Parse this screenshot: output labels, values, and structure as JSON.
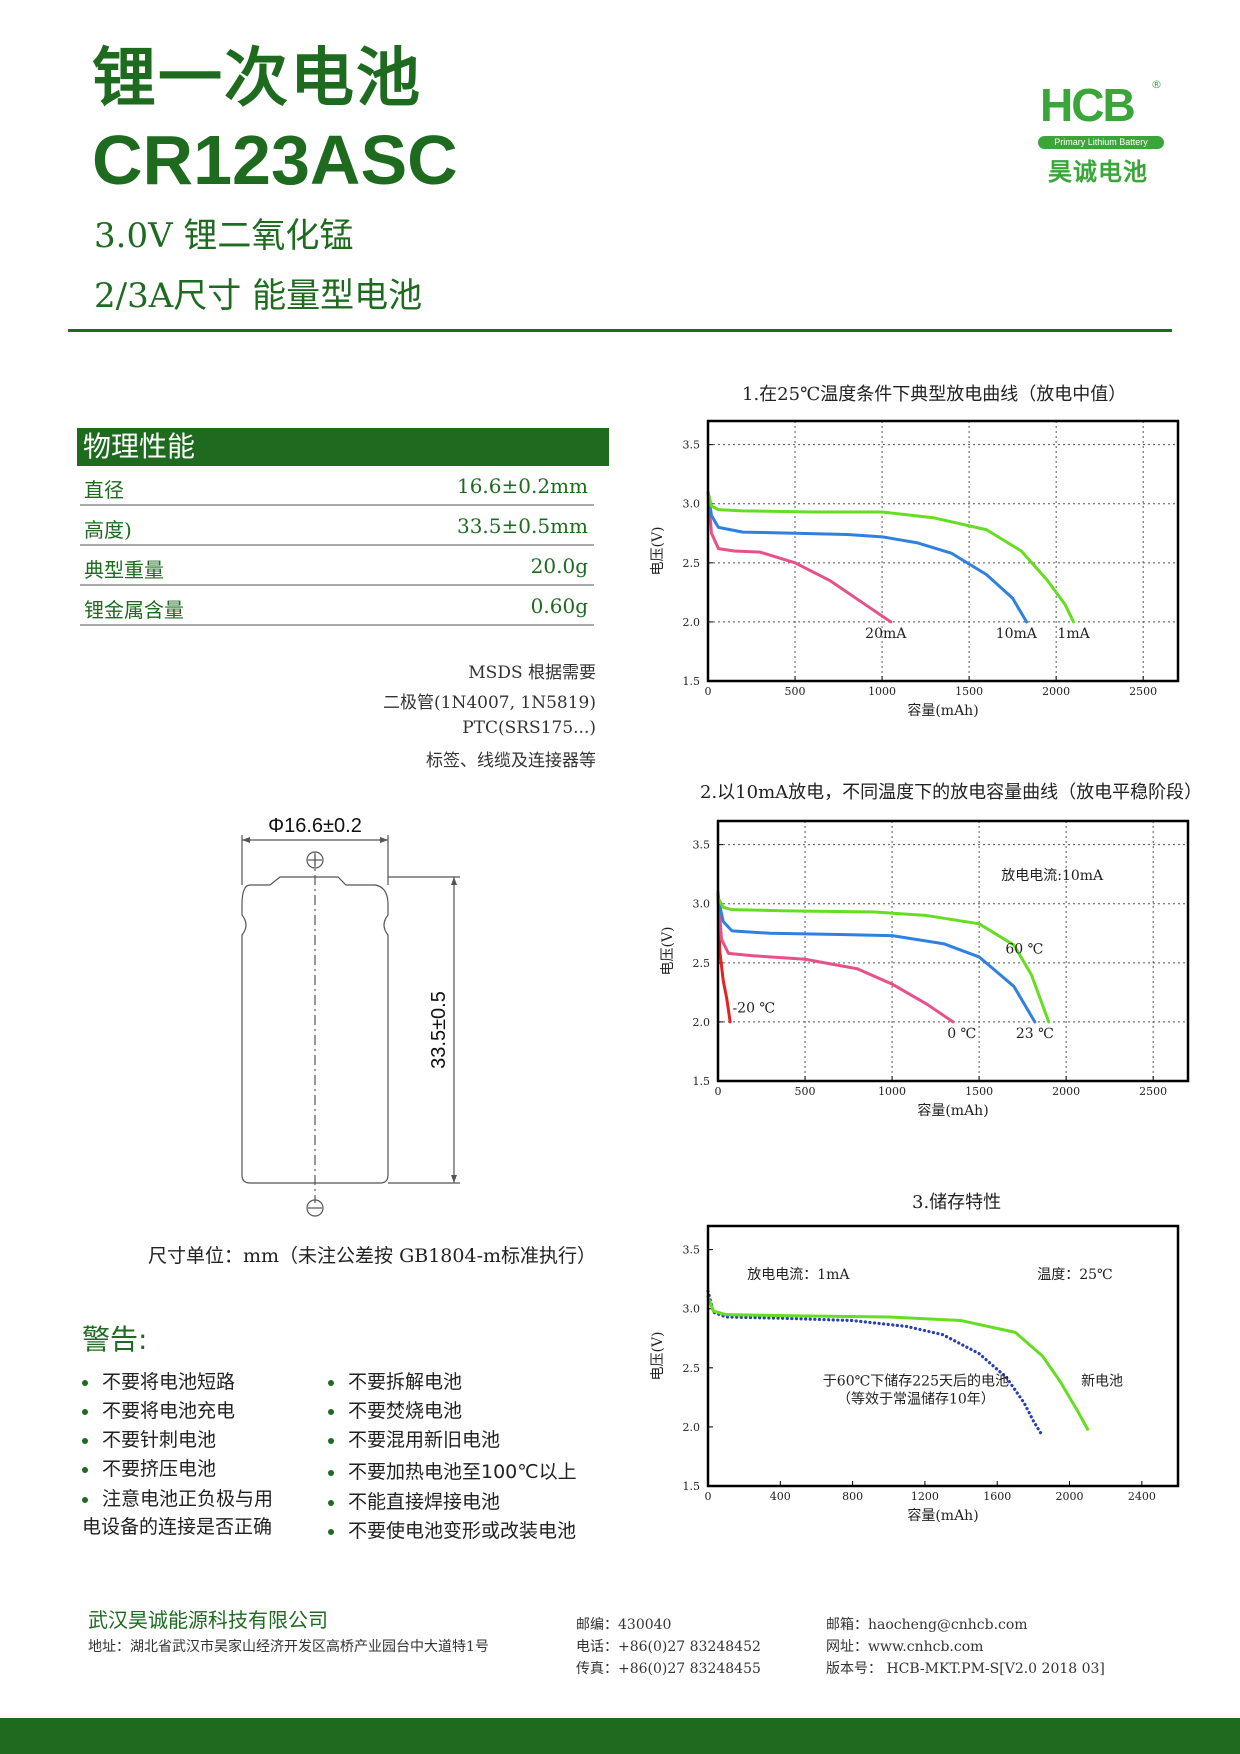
{
  "header": {
    "title_cn": "锂一次电池",
    "model": "CR123ASC",
    "subtitle1": "3.0V 锂二氧化锰",
    "subtitle2": "2/3A尺寸 能量型电池"
  },
  "logo": {
    "brand": "HCB",
    "registered": "®",
    "tagline": "Primary Lithium Battery",
    "name_cn": "昊诚电池"
  },
  "physical": {
    "heading": "物理性能",
    "rows": [
      {
        "label": "直径",
        "value": "16.6±0.2mm"
      },
      {
        "label": "高度)",
        "value": "33.5±0.5mm"
      },
      {
        "label": "典型重量",
        "value": "20.0g"
      },
      {
        "label": "锂金属含量",
        "value": "0.60g"
      }
    ]
  },
  "accessories": [
    "MSDS 根据需要",
    "二极管(1N4007, 1N5819)",
    "PTC(SRS175...)",
    "标签、线缆及连接器等"
  ],
  "drawing": {
    "diameter": "Φ16.6±0.2",
    "height": "33.5±0.5",
    "caption": "尺寸单位：mm（未注公差按 GB1804-m标准执行）"
  },
  "warnings": {
    "title": "警告:",
    "left": [
      "不要将电池短路",
      "不要将电池充电",
      "不要针刺电池",
      "不要挤压电池",
      "注意电池正负极与用"
    ],
    "left_cont": "电设备的连接是否正确",
    "right": [
      "不要拆解电池",
      "不要焚烧电池",
      "不要混用新旧电池",
      "不要加热电池至100℃以上",
      "不能直接焊接电池",
      "不要使电池变形或改装电池"
    ]
  },
  "charts": {
    "c1_title": "1.在25℃温度条件下典型放电曲线（放电中值）",
    "c2_title": "2.以10mA放电，不同温度下的放电容量曲线（放电平稳阶段）",
    "c3_title": "3.储存特性",
    "ylabel": "电压(V)",
    "xlabel": "容量(mAh)",
    "c2_note": "放电电流:10mA",
    "c3_note_current": "放电电流：1mA",
    "c3_note_temp": "温度：25℃",
    "c3_note_stored1": "于60℃下储存225天后的电池",
    "c3_note_stored2": "（等效于常温储存10年）",
    "c3_note_new": "新电池"
  },
  "chart_data": [
    {
      "type": "line",
      "title": "1.在25℃温度条件下典型放电曲线（放电中值）",
      "xlabel": "容量(mAh)",
      "ylabel": "电压(V)",
      "xlim": [
        0,
        2700
      ],
      "ylim": [
        1.5,
        3.7
      ],
      "x_ticks": [
        0,
        500,
        1000,
        1500,
        2000,
        2500
      ],
      "y_ticks": [
        1.5,
        2.0,
        2.5,
        3.0,
        3.5
      ],
      "grid": true,
      "series": [
        {
          "name": "20mA",
          "color": "#e8508a",
          "x": [
            0,
            20,
            60,
            150,
            300,
            500,
            700,
            900,
            1050
          ],
          "y": [
            3.1,
            2.75,
            2.62,
            2.6,
            2.59,
            2.5,
            2.35,
            2.15,
            2.0
          ]
        },
        {
          "name": "10mA",
          "color": "#3080e0",
          "x": [
            0,
            20,
            60,
            200,
            500,
            800,
            1000,
            1200,
            1400,
            1600,
            1750,
            1830
          ],
          "y": [
            3.1,
            2.9,
            2.8,
            2.76,
            2.75,
            2.74,
            2.72,
            2.67,
            2.58,
            2.4,
            2.2,
            2.0
          ]
        },
        {
          "name": "1mA",
          "color": "#66dd22",
          "x": [
            0,
            20,
            60,
            200,
            600,
            1000,
            1300,
            1600,
            1800,
            1950,
            2050,
            2100
          ],
          "y": [
            3.1,
            2.98,
            2.95,
            2.94,
            2.93,
            2.93,
            2.88,
            2.78,
            2.6,
            2.35,
            2.15,
            2.0
          ]
        }
      ]
    },
    {
      "type": "line",
      "title": "2.以10mA放电，不同温度下的放电容量曲线（放电平稳阶段）",
      "xlabel": "容量(mAh)",
      "ylabel": "电压(V)",
      "xlim": [
        0,
        2700
      ],
      "ylim": [
        1.5,
        3.7
      ],
      "x_ticks": [
        0,
        500,
        1000,
        1500,
        2000,
        2500
      ],
      "y_ticks": [
        1.5,
        2.0,
        2.5,
        3.0,
        3.5
      ],
      "grid": true,
      "series": [
        {
          "name": "-20 ℃",
          "color": "#e82020",
          "x": [
            0,
            10,
            30,
            50,
            60,
            70
          ],
          "y": [
            3.1,
            2.6,
            2.35,
            2.2,
            2.1,
            2.0
          ]
        },
        {
          "name": "0 ℃",
          "color": "#e8508a",
          "x": [
            0,
            20,
            60,
            200,
            500,
            800,
            1000,
            1200,
            1350
          ],
          "y": [
            3.1,
            2.7,
            2.58,
            2.56,
            2.53,
            2.45,
            2.32,
            2.15,
            2.0
          ]
        },
        {
          "name": "23 ℃",
          "color": "#3080e0",
          "x": [
            0,
            30,
            80,
            300,
            700,
            1000,
            1300,
            1500,
            1700,
            1820
          ],
          "y": [
            3.05,
            2.85,
            2.77,
            2.75,
            2.74,
            2.73,
            2.66,
            2.55,
            2.3,
            2.0
          ]
        },
        {
          "name": "60 ℃",
          "color": "#66dd22",
          "x": [
            0,
            30,
            80,
            400,
            900,
            1200,
            1500,
            1700,
            1800,
            1900
          ],
          "y": [
            3.05,
            2.97,
            2.95,
            2.94,
            2.93,
            2.9,
            2.83,
            2.65,
            2.4,
            2.0
          ]
        }
      ]
    },
    {
      "type": "line",
      "title": "3.储存特性",
      "xlabel": "容量(mAh)",
      "ylabel": "电压(V)",
      "xlim": [
        0,
        2600
      ],
      "ylim": [
        1.5,
        3.7
      ],
      "x_ticks": [
        0,
        400,
        800,
        1200,
        1600,
        2000,
        2400
      ],
      "y_ticks": [
        1.5,
        2.0,
        2.5,
        3.0,
        3.5
      ],
      "grid": false,
      "series": [
        {
          "name": "于60℃下储存225天后的电池",
          "color": "#2a3fb0",
          "dotted": true,
          "x": [
            0,
            30,
            100,
            400,
            800,
            1100,
            1300,
            1500,
            1650,
            1750,
            1800,
            1840
          ],
          "y": [
            3.15,
            2.97,
            2.93,
            2.92,
            2.9,
            2.85,
            2.78,
            2.62,
            2.42,
            2.2,
            2.05,
            1.95
          ]
        },
        {
          "name": "新电池",
          "color": "#66dd22",
          "x": [
            0,
            30,
            100,
            500,
            1000,
            1400,
            1700,
            1850,
            1950,
            2050,
            2100
          ],
          "y": [
            3.1,
            2.98,
            2.95,
            2.94,
            2.93,
            2.9,
            2.8,
            2.6,
            2.38,
            2.12,
            1.98
          ]
        }
      ]
    }
  ],
  "footer": {
    "company": "武汉昊诚能源科技有限公司",
    "address": "地址：湖北省武汉市吴家山经济开发区高桥产业园台中大道特1号",
    "postcode": "邮编：430040",
    "phone": "电话：+86(0)27 83248452",
    "fax": "传真：+86(0)27 83248455",
    "email": "邮箱：haocheng@cnhcb.com",
    "website": "网址：www.cnhcb.com",
    "version": "版本号： HCB-MKT.PM-S[V2.0  2018 03]"
  }
}
